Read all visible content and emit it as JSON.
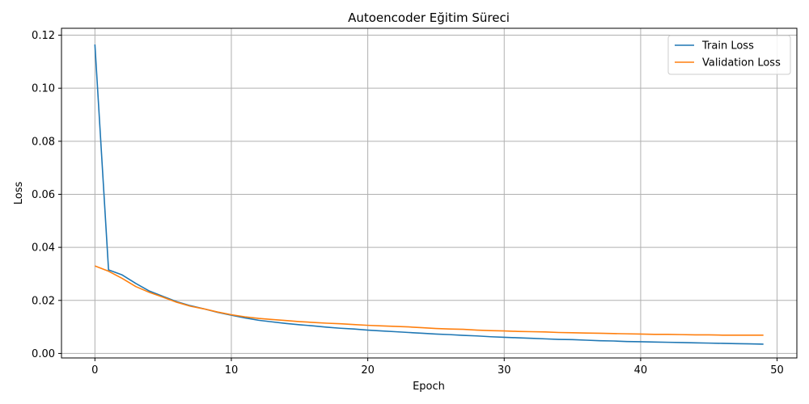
{
  "chart_data": {
    "type": "line",
    "title": "Autoencoder Eğitim Süreci",
    "xlabel": "Epoch",
    "ylabel": "Loss",
    "xlim": [
      -2.45,
      51.45
    ],
    "ylim": [
      -0.0017,
      0.1226
    ],
    "x_ticks": [
      0,
      10,
      20,
      30,
      40,
      50
    ],
    "y_ticks": [
      0.0,
      0.02,
      0.04,
      0.06,
      0.08,
      0.1,
      0.12
    ],
    "y_tick_labels": [
      "0.00",
      "0.02",
      "0.04",
      "0.06",
      "0.08",
      "0.10",
      "0.12"
    ],
    "grid": true,
    "legend_position": "top-right",
    "x": [
      0,
      1,
      2,
      3,
      4,
      5,
      6,
      7,
      8,
      9,
      10,
      11,
      12,
      13,
      14,
      15,
      16,
      17,
      18,
      19,
      20,
      21,
      22,
      23,
      24,
      25,
      26,
      27,
      28,
      29,
      30,
      31,
      32,
      33,
      34,
      35,
      36,
      37,
      38,
      39,
      40,
      41,
      42,
      43,
      44,
      45,
      46,
      47,
      48,
      49
    ],
    "series": [
      {
        "name": "Train Loss",
        "color": "#1f77b4",
        "values": [
          0.1165,
          0.0315,
          0.0296,
          0.0264,
          0.0235,
          0.0215,
          0.0195,
          0.018,
          0.0168,
          0.0155,
          0.0144,
          0.0134,
          0.0125,
          0.0119,
          0.0113,
          0.0108,
          0.0104,
          0.0099,
          0.0095,
          0.0092,
          0.0088,
          0.0085,
          0.0082,
          0.0079,
          0.0076,
          0.0073,
          0.0071,
          0.0068,
          0.0066,
          0.0063,
          0.0061,
          0.0059,
          0.0057,
          0.0055,
          0.0053,
          0.0052,
          0.005,
          0.0048,
          0.0047,
          0.0045,
          0.0044,
          0.0043,
          0.0042,
          0.0041,
          0.004,
          0.0039,
          0.0038,
          0.0037,
          0.0036,
          0.0035
        ]
      },
      {
        "name": "Validation Loss",
        "color": "#ff7f0e",
        "values": [
          0.033,
          0.031,
          0.0283,
          0.0252,
          0.023,
          0.0212,
          0.0193,
          0.0178,
          0.0168,
          0.0156,
          0.0146,
          0.0138,
          0.0132,
          0.0128,
          0.0124,
          0.012,
          0.0117,
          0.0114,
          0.0112,
          0.0109,
          0.0106,
          0.0104,
          0.0102,
          0.01,
          0.0097,
          0.0094,
          0.0092,
          0.0091,
          0.0088,
          0.0086,
          0.0085,
          0.0083,
          0.0082,
          0.0081,
          0.0079,
          0.0078,
          0.0077,
          0.0076,
          0.0075,
          0.0074,
          0.0073,
          0.0072,
          0.0072,
          0.0071,
          0.007,
          0.007,
          0.0069,
          0.0069,
          0.0069,
          0.0069
        ]
      }
    ]
  }
}
